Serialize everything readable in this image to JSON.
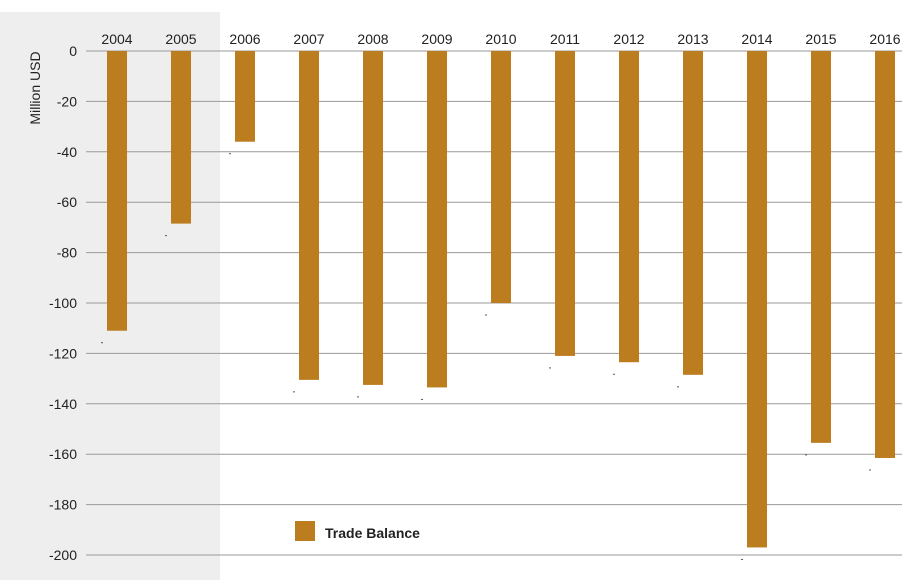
{
  "chart_data": {
    "type": "bar",
    "categories": [
      "2004",
      "2005",
      "2006",
      "2007",
      "2008",
      "2009",
      "2010",
      "2011",
      "2012",
      "2013",
      "2014",
      "2015",
      "2016"
    ],
    "series": [
      {
        "name": "Trade Balance",
        "values": [
          -111,
          -68.5,
          -36,
          -130.5,
          -132.5,
          -133.5,
          -100,
          -121,
          -123.5,
          -128.5,
          -197,
          -155.5,
          -161.5
        ],
        "color": "#bb7d1e"
      }
    ],
    "ylabel": "Million USD",
    "xlabel": "",
    "ylim": [
      -200,
      0
    ],
    "yticks": [
      0,
      -20,
      -40,
      -60,
      -80,
      -100,
      -120,
      -140,
      -160,
      -180,
      -200
    ],
    "x_axis_position": "top",
    "grid": true,
    "legend_position": "bottom-left"
  }
}
